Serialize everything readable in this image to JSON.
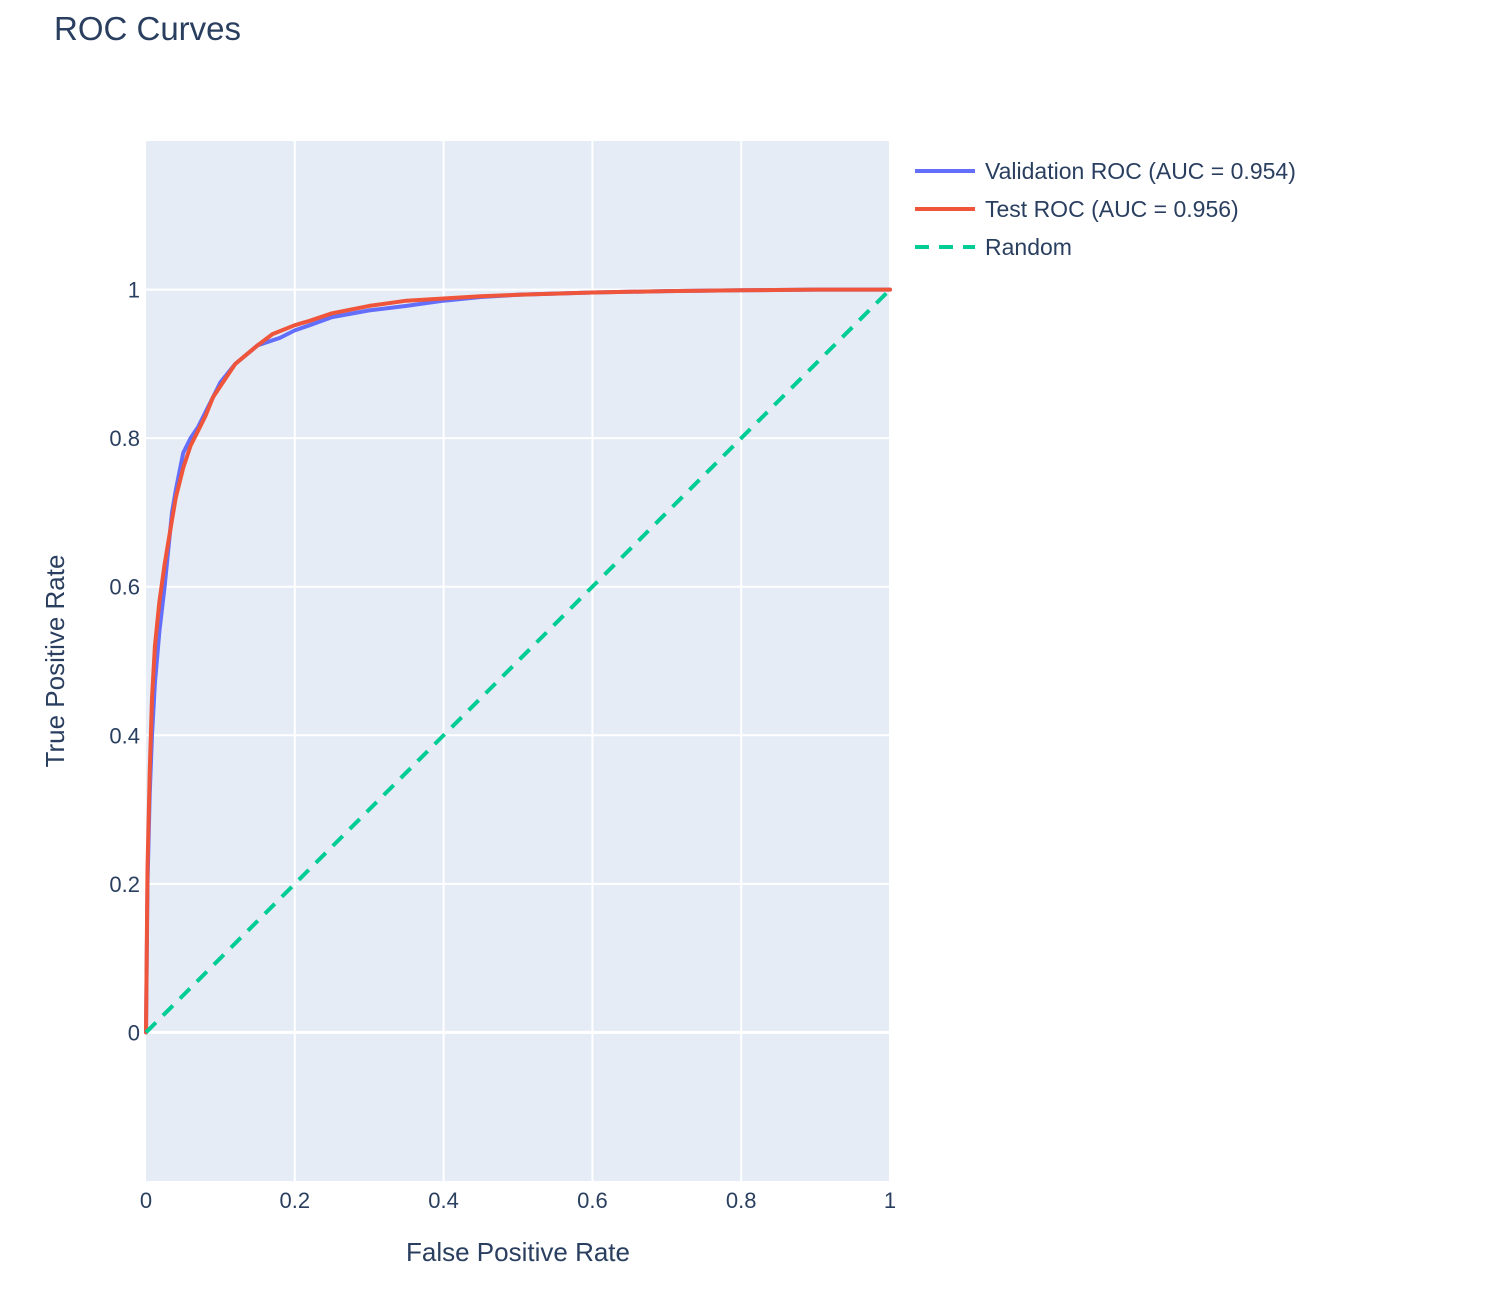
{
  "chart_data": {
    "type": "line",
    "title": "ROC Curves",
    "xlabel": "False Positive Rate",
    "ylabel": "True Positive Rate",
    "xlim": [
      0,
      1
    ],
    "ylim": [
      -0.2,
      1.2
    ],
    "x_ticks": [
      0,
      0.2,
      0.4,
      0.6,
      0.8,
      1
    ],
    "x_tick_labels": [
      "0",
      "0.2",
      "0.4",
      "0.6",
      "0.8",
      "1"
    ],
    "y_ticks": [
      0,
      0.2,
      0.4,
      0.6,
      0.8,
      1
    ],
    "y_tick_labels": [
      "0",
      "0.2",
      "0.4",
      "0.6",
      "0.8",
      "1"
    ],
    "grid": true,
    "legend_position": "top-right outside",
    "plot_background": "#e5ecf6",
    "series": [
      {
        "name": "Validation ROC (AUC = 0.954)",
        "color": "#636efa",
        "dash": "solid",
        "x": [
          0,
          0.002,
          0.005,
          0.008,
          0.012,
          0.018,
          0.025,
          0.03,
          0.035,
          0.04,
          0.05,
          0.06,
          0.07,
          0.08,
          0.09,
          0.1,
          0.12,
          0.15,
          0.18,
          0.2,
          0.22,
          0.25,
          0.3,
          0.35,
          0.4,
          0.45,
          0.5,
          0.6,
          0.7,
          0.8,
          0.9,
          1.0
        ],
        "y": [
          0,
          0.2,
          0.32,
          0.4,
          0.47,
          0.54,
          0.6,
          0.65,
          0.7,
          0.73,
          0.78,
          0.8,
          0.815,
          0.835,
          0.855,
          0.875,
          0.9,
          0.925,
          0.935,
          0.945,
          0.952,
          0.963,
          0.972,
          0.978,
          0.985,
          0.99,
          0.993,
          0.996,
          0.998,
          0.999,
          1.0,
          1.0
        ]
      },
      {
        "name": "Test ROC (AUC = 0.956)",
        "color": "#ef553b",
        "dash": "solid",
        "x": [
          0,
          0.002,
          0.005,
          0.008,
          0.012,
          0.018,
          0.025,
          0.03,
          0.035,
          0.04,
          0.05,
          0.06,
          0.07,
          0.08,
          0.09,
          0.1,
          0.12,
          0.15,
          0.17,
          0.2,
          0.22,
          0.25,
          0.3,
          0.35,
          0.4,
          0.45,
          0.5,
          0.6,
          0.7,
          0.8,
          0.9,
          1.0
        ],
        "y": [
          0,
          0.22,
          0.35,
          0.45,
          0.52,
          0.58,
          0.63,
          0.66,
          0.69,
          0.72,
          0.76,
          0.79,
          0.81,
          0.83,
          0.855,
          0.87,
          0.9,
          0.925,
          0.94,
          0.952,
          0.958,
          0.968,
          0.978,
          0.985,
          0.988,
          0.991,
          0.993,
          0.996,
          0.998,
          0.999,
          1.0,
          1.0
        ]
      },
      {
        "name": "Random",
        "color": "#00cc96",
        "dash": "dash",
        "x": [
          0,
          1
        ],
        "y": [
          0,
          1
        ]
      }
    ]
  }
}
